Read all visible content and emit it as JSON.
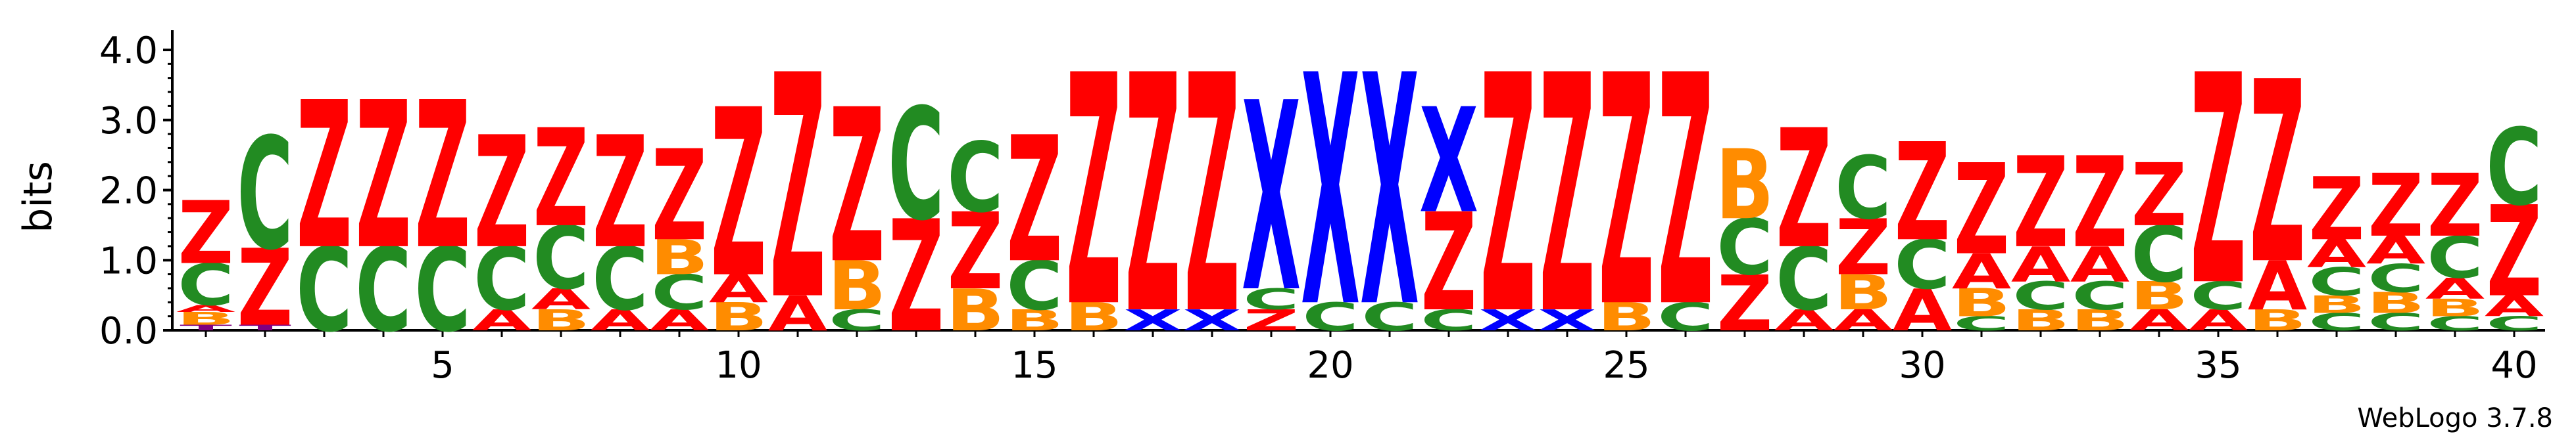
{
  "chart_data": {
    "type": "sequence_logo",
    "ylabel": "bits",
    "ylim": [
      0,
      4.0
    ],
    "yticks": [
      "0.0",
      "1.0",
      "2.0",
      "3.0",
      "4.0"
    ],
    "xticks": [
      "5",
      "10",
      "15",
      "20",
      "25",
      "30",
      "35",
      "40"
    ],
    "xtick_positions": [
      5,
      10,
      15,
      20,
      25,
      30,
      35,
      40
    ],
    "footer": "WebLogo 3.7.8",
    "colors": {
      "Z": "#ff0000",
      "C": "#228b22",
      "B": "#ff8c00",
      "A": "#ff0000",
      "X": "#0000ff",
      "T": "#800080"
    },
    "positions": [
      {
        "pos": 1,
        "stack": [
          [
            "T",
            0.08
          ],
          [
            "B",
            0.18
          ],
          [
            "A",
            0.1
          ],
          [
            "C",
            0.6
          ],
          [
            "Z",
            0.9
          ]
        ]
      },
      {
        "pos": 2,
        "stack": [
          [
            "T",
            0.08
          ],
          [
            "Z",
            1.1
          ],
          [
            "C",
            1.6
          ]
        ]
      },
      {
        "pos": 3,
        "stack": [
          [
            "C",
            1.2
          ],
          [
            "Z",
            2.1
          ]
        ]
      },
      {
        "pos": 4,
        "stack": [
          [
            "C",
            1.2
          ],
          [
            "Z",
            2.1
          ]
        ]
      },
      {
        "pos": 5,
        "stack": [
          [
            "C",
            1.2
          ],
          [
            "Z",
            2.1
          ]
        ]
      },
      {
        "pos": 6,
        "stack": [
          [
            "A",
            0.3
          ],
          [
            "C",
            0.9
          ],
          [
            "Z",
            1.6
          ]
        ]
      },
      {
        "pos": 7,
        "stack": [
          [
            "B",
            0.3
          ],
          [
            "A",
            0.3
          ],
          [
            "C",
            0.9
          ],
          [
            "Z",
            1.4
          ]
        ]
      },
      {
        "pos": 8,
        "stack": [
          [
            "A",
            0.3
          ],
          [
            "C",
            0.9
          ],
          [
            "Z",
            1.6
          ]
        ]
      },
      {
        "pos": 9,
        "stack": [
          [
            "A",
            0.3
          ],
          [
            "C",
            0.5
          ],
          [
            "B",
            0.5
          ],
          [
            "Z",
            1.3
          ]
        ]
      },
      {
        "pos": 10,
        "stack": [
          [
            "B",
            0.4
          ],
          [
            "A",
            0.4
          ],
          [
            "Z",
            2.4
          ]
        ]
      },
      {
        "pos": 11,
        "stack": [
          [
            "A",
            0.5
          ],
          [
            "Z",
            3.2
          ]
        ]
      },
      {
        "pos": 12,
        "stack": [
          [
            "C",
            0.3
          ],
          [
            "B",
            0.7
          ],
          [
            "Z",
            2.2
          ]
        ]
      },
      {
        "pos": 13,
        "stack": [
          [
            "Z",
            1.6
          ],
          [
            "C",
            1.6
          ]
        ]
      },
      {
        "pos": 14,
        "stack": [
          [
            "B",
            0.6
          ],
          [
            "Z",
            1.1
          ],
          [
            "C",
            1.0
          ]
        ]
      },
      {
        "pos": 15,
        "stack": [
          [
            "B",
            0.3
          ],
          [
            "C",
            0.7
          ],
          [
            "Z",
            1.8
          ]
        ]
      },
      {
        "pos": 16,
        "stack": [
          [
            "B",
            0.4
          ],
          [
            "Z",
            3.3
          ]
        ]
      },
      {
        "pos": 17,
        "stack": [
          [
            "X",
            0.3
          ],
          [
            "Z",
            3.4
          ]
        ]
      },
      {
        "pos": 18,
        "stack": [
          [
            "X",
            0.3
          ],
          [
            "Z",
            3.4
          ]
        ]
      },
      {
        "pos": 19,
        "stack": [
          [
            "Z",
            0.3
          ],
          [
            "C",
            0.3
          ],
          [
            "X",
            2.7
          ]
        ]
      },
      {
        "pos": 20,
        "stack": [
          [
            "C",
            0.4
          ],
          [
            "X",
            3.3
          ]
        ]
      },
      {
        "pos": 21,
        "stack": [
          [
            "C",
            0.4
          ],
          [
            "X",
            3.3
          ]
        ]
      },
      {
        "pos": 22,
        "stack": [
          [
            "C",
            0.3
          ],
          [
            "Z",
            1.4
          ],
          [
            "X",
            1.5
          ]
        ]
      },
      {
        "pos": 23,
        "stack": [
          [
            "X",
            0.3
          ],
          [
            "Z",
            3.4
          ]
        ]
      },
      {
        "pos": 24,
        "stack": [
          [
            "X",
            0.3
          ],
          [
            "Z",
            3.4
          ]
        ]
      },
      {
        "pos": 25,
        "stack": [
          [
            "B",
            0.4
          ],
          [
            "Z",
            3.3
          ]
        ]
      },
      {
        "pos": 26,
        "stack": [
          [
            "C",
            0.4
          ],
          [
            "Z",
            3.3
          ]
        ]
      },
      {
        "pos": 27,
        "stack": [
          [
            "Z",
            0.8
          ],
          [
            "C",
            0.8
          ],
          [
            "B",
            1.0
          ]
        ]
      },
      {
        "pos": 28,
        "stack": [
          [
            "A",
            0.3
          ],
          [
            "C",
            0.9
          ],
          [
            "Z",
            1.7
          ]
        ]
      },
      {
        "pos": 29,
        "stack": [
          [
            "A",
            0.3
          ],
          [
            "B",
            0.5
          ],
          [
            "Z",
            0.8
          ],
          [
            "C",
            0.9
          ]
        ]
      },
      {
        "pos": 30,
        "stack": [
          [
            "A",
            0.6
          ],
          [
            "C",
            0.7
          ],
          [
            "Z",
            1.4
          ]
        ]
      },
      {
        "pos": 31,
        "stack": [
          [
            "C",
            0.2
          ],
          [
            "B",
            0.4
          ],
          [
            "A",
            0.5
          ],
          [
            "Z",
            1.3
          ]
        ]
      },
      {
        "pos": 32,
        "stack": [
          [
            "B",
            0.3
          ],
          [
            "C",
            0.4
          ],
          [
            "A",
            0.5
          ],
          [
            "Z",
            1.3
          ]
        ]
      },
      {
        "pos": 33,
        "stack": [
          [
            "B",
            0.3
          ],
          [
            "C",
            0.4
          ],
          [
            "A",
            0.5
          ],
          [
            "Z",
            1.3
          ]
        ]
      },
      {
        "pos": 34,
        "stack": [
          [
            "A",
            0.3
          ],
          [
            "B",
            0.4
          ],
          [
            "C",
            0.8
          ],
          [
            "Z",
            0.9
          ]
        ]
      },
      {
        "pos": 35,
        "stack": [
          [
            "A",
            0.3
          ],
          [
            "C",
            0.4
          ],
          [
            "Z",
            3.0
          ]
        ]
      },
      {
        "pos": 36,
        "stack": [
          [
            "B",
            0.3
          ],
          [
            "A",
            0.7
          ],
          [
            "Z",
            2.6
          ]
        ]
      },
      {
        "pos": 37,
        "stack": [
          [
            "C",
            0.25
          ],
          [
            "B",
            0.25
          ],
          [
            "C",
            0.4
          ],
          [
            "A",
            0.4
          ],
          [
            "Z",
            0.9
          ]
        ]
      },
      {
        "pos": 38,
        "stack": [
          [
            "C",
            0.25
          ],
          [
            "B",
            0.3
          ],
          [
            "C",
            0.4
          ],
          [
            "A",
            0.4
          ],
          [
            "Z",
            0.9
          ]
        ]
      },
      {
        "pos": 39,
        "stack": [
          [
            "C",
            0.2
          ],
          [
            "B",
            0.25
          ],
          [
            "A",
            0.3
          ],
          [
            "C",
            0.6
          ],
          [
            "Z",
            0.9
          ]
        ]
      },
      {
        "pos": 40,
        "stack": [
          [
            "C",
            0.2
          ],
          [
            "A",
            0.3
          ],
          [
            "Z",
            1.3
          ],
          [
            "C",
            1.1
          ]
        ]
      }
    ]
  }
}
